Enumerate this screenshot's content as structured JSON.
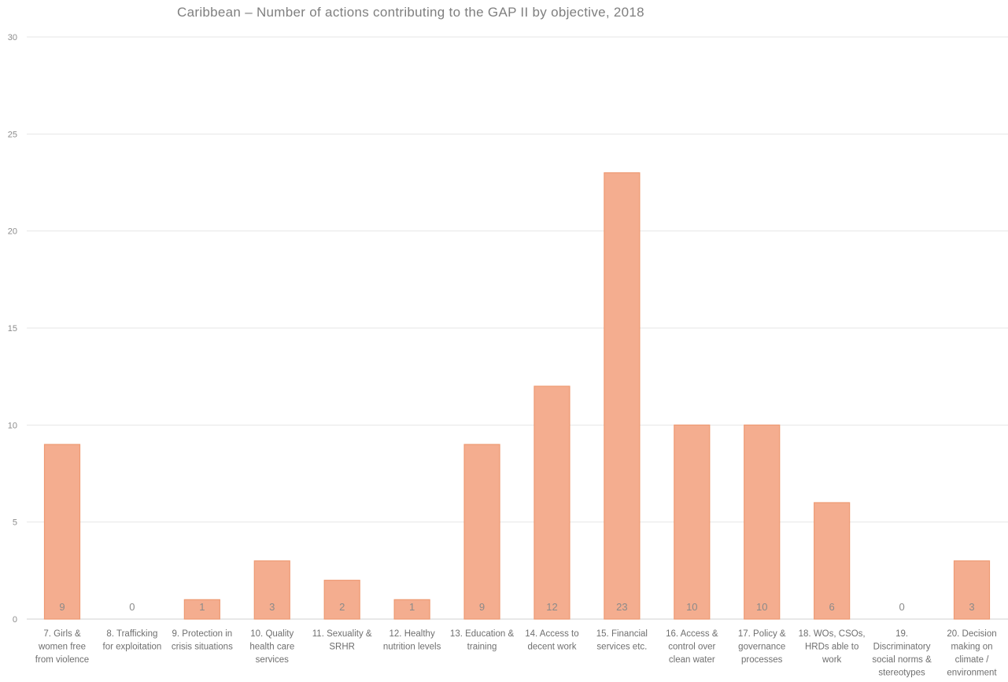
{
  "chart_data": {
    "type": "bar",
    "title": "Caribbean – Number of actions contributing to the GAP II by objective, 2018",
    "xlabel": "",
    "ylabel": "",
    "ylim": [
      0,
      30
    ],
    "yticks": [
      0,
      5,
      10,
      15,
      20,
      25,
      30
    ],
    "grid": true,
    "legend": "none",
    "bar_color": "#f4ad8f",
    "bar_edge_color": "#ee9a73",
    "categories": [
      [
        "7. Girls &",
        "women free",
        "from violence"
      ],
      [
        "8. Trafficking",
        "for exploitation"
      ],
      [
        "9. Protection in",
        "crisis situations"
      ],
      [
        "10. Quality",
        "health care",
        "services"
      ],
      [
        "11. Sexuality &",
        "SRHR"
      ],
      [
        "12. Healthy",
        "nutrition levels"
      ],
      [
        "13. Education &",
        "training"
      ],
      [
        "14. Access to",
        "decent work"
      ],
      [
        "15. Financial",
        "services etc."
      ],
      [
        "16. Access &",
        "control over",
        "clean water"
      ],
      [
        "17. Policy &",
        "governance",
        "processes"
      ],
      [
        "18. WOs, CSOs,",
        "HRDs able to",
        "work"
      ],
      [
        "19.",
        "Discriminatory",
        "social norms &",
        "stereotypes"
      ],
      [
        "20. Decision",
        "making on",
        "climate /",
        "environment"
      ]
    ],
    "values": [
      9,
      0,
      1,
      3,
      2,
      1,
      9,
      12,
      23,
      10,
      10,
      6,
      0,
      3
    ],
    "data_labels": [
      "9",
      "0",
      "1",
      "3",
      "2",
      "1",
      "9",
      "12",
      "23",
      "10",
      "10",
      "6",
      "0",
      "3"
    ]
  }
}
